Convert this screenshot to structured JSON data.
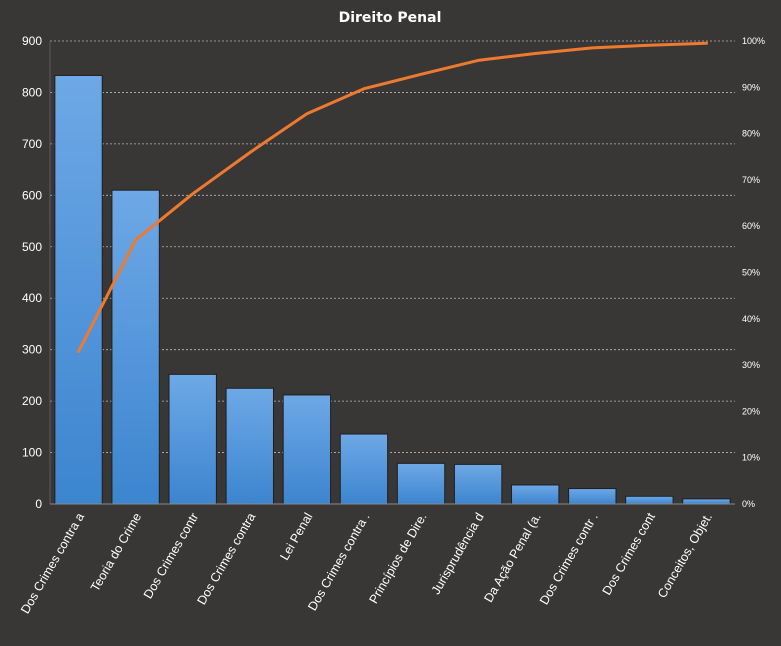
{
  "chart_data": {
    "type": "bar",
    "title": "Direito  Penal",
    "categories": [
      "Dos Crimes contra a",
      "Teoria do Crime",
      "Dos Crimes contr",
      "Dos Crimes contra",
      "Lei Penal",
      "Dos Crimes contra  .",
      "Princípios de Dire.",
      "Jurisprudência d",
      "Da Ação Penal (a.",
      "Dos Crimes contr .",
      "Dos Crimes cont",
      "Conceitos, Objet."
    ],
    "series": [
      {
        "type": "bar",
        "values": [
          833,
          610,
          252,
          225,
          212,
          136,
          79,
          77,
          37,
          30,
          15,
          10
        ]
      },
      {
        "type": "line",
        "axis": "secondary",
        "values": [
          32.9,
          57.0,
          67.0,
          75.9,
          84.3,
          89.7,
          92.8,
          95.8,
          97.3,
          98.5,
          99.1,
          99.5
        ]
      }
    ],
    "ylim": [
      0,
      900
    ],
    "yticks": [
      "0",
      "100",
      "200",
      "300",
      "400",
      "500",
      "600",
      "700",
      "800",
      "900"
    ],
    "y2lim": [
      0,
      100
    ],
    "y2ticks": [
      "0%",
      "10%",
      "20%",
      "30%",
      "40%",
      "50%",
      "60%",
      "70%",
      "80%",
      "90%",
      "100%"
    ],
    "grid": true,
    "legend": "none",
    "colors": {
      "background": "#393736",
      "bar_top": "#6ea8e6",
      "bar_bottom": "#3c85cf",
      "bar_border": "#1f1f1f",
      "line": "#ee7a2f",
      "text": "#ffffff",
      "grid": "#b8b8b8"
    }
  }
}
